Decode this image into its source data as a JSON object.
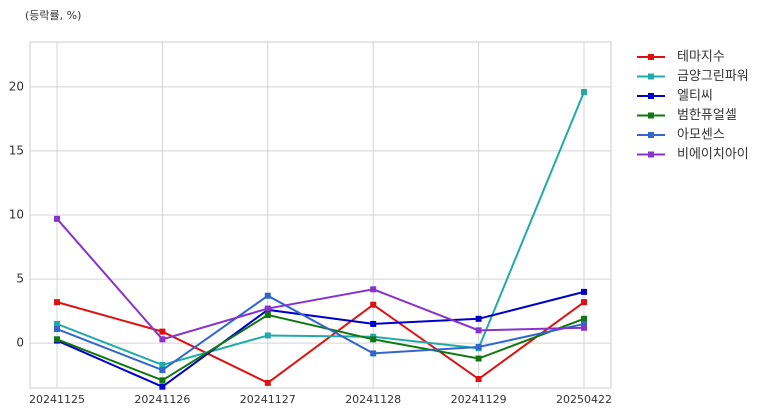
{
  "chart_data": {
    "type": "line",
    "ylabel": "(등락률, %)",
    "categories": [
      "20241125",
      "20241126",
      "20241127",
      "20241128",
      "20241129",
      "20250422"
    ],
    "series": [
      {
        "name": "테마지수",
        "color": "#dd1111",
        "values": [
          3.2,
          0.9,
          -3.1,
          3.0,
          -2.8,
          3.2
        ]
      },
      {
        "name": "금양그린파워",
        "color": "#22aaaa",
        "values": [
          1.5,
          -1.7,
          0.6,
          0.5,
          -0.4,
          19.6
        ]
      },
      {
        "name": "엘티씨",
        "color": "#0000cc",
        "values": [
          0.2,
          -3.4,
          2.6,
          1.5,
          1.9,
          4.0
        ]
      },
      {
        "name": "범한퓨얼셀",
        "color": "#117711",
        "values": [
          0.3,
          -2.9,
          2.2,
          0.3,
          -1.2,
          1.9
        ]
      },
      {
        "name": "아모센스",
        "color": "#3366cc",
        "values": [
          1.1,
          -2.1,
          3.7,
          -0.8,
          -0.3,
          1.5
        ]
      },
      {
        "name": "비에이치아이",
        "color": "#8833cc",
        "values": [
          9.7,
          0.3,
          2.7,
          4.2,
          1.0,
          1.2
        ]
      }
    ],
    "ylim": [
      -3.5,
      23.5
    ],
    "yticks": [
      0,
      5,
      10,
      15,
      20
    ],
    "grid": true,
    "legend": "outside right"
  }
}
